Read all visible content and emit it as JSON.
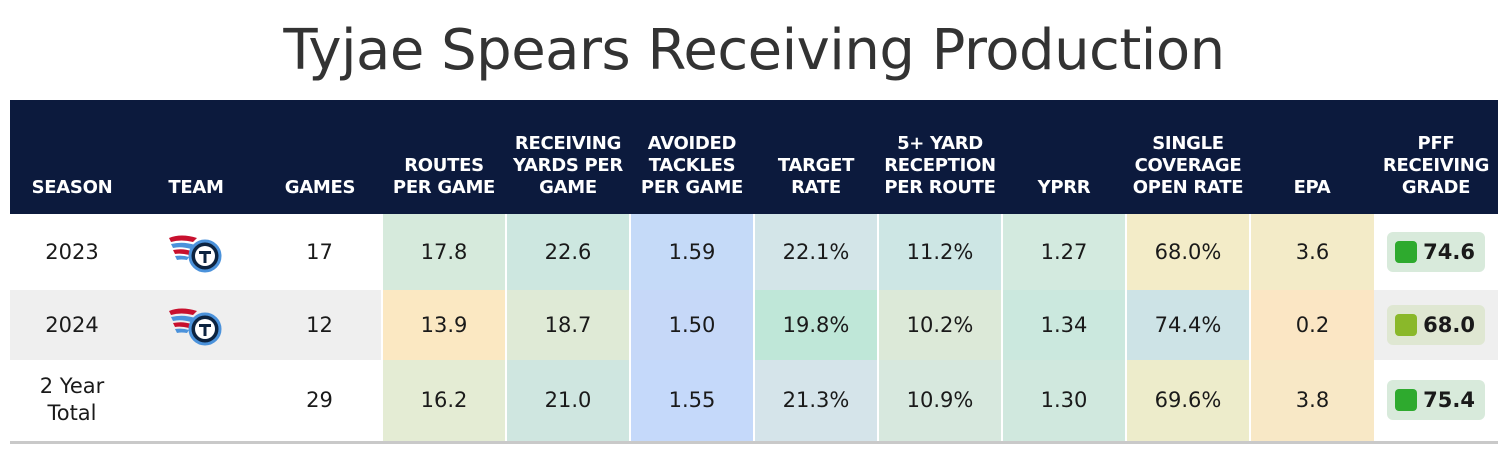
{
  "title": "Tyjae Spears Receiving Production",
  "columns": [
    "SEASON",
    "TEAM",
    "GAMES",
    "ROUTES PER GAME",
    "RECEIVING YARDS PER GAME",
    "AVOIDED TACKLES PER GAME",
    "TARGET RATE",
    "5+ YARD RECEPTION PER ROUTE",
    "YPRR",
    "SINGLE COVERAGE OPEN RATE",
    "EPA",
    "PFF RECEIVING GRADE"
  ],
  "rows": [
    {
      "season": "2023",
      "team_logo": "titans-logo-icon",
      "games": "17",
      "routes_per_game": "17.8",
      "rec_yards_per_game": "22.6",
      "avoided_tackles_per_game": "1.59",
      "target_rate": "22.1%",
      "five_plus_yard_rec_per_route": "11.2%",
      "yprr": "1.27",
      "single_coverage_open_rate": "68.0%",
      "epa": "3.6",
      "pff_grade": "74.6",
      "colors": {
        "routes_per_game": "#d6eadc",
        "rec_yards_per_game": "#cde7e0",
        "avoided_tackles_per_game": "#c5daf8",
        "target_rate": "#d3e5e8",
        "five_plus_yard_rec_per_route": "#cde6e4",
        "yprr": "#d3eadf",
        "single_coverage_open_rate": "#f3ecc8",
        "epa": "#f3ebc8",
        "grade_dot": "#2eaa2e",
        "grade_bg": "#d8eadb"
      }
    },
    {
      "season": "2024",
      "team_logo": "titans-logo-icon",
      "games": "12",
      "routes_per_game": "13.9",
      "rec_yards_per_game": "18.7",
      "avoided_tackles_per_game": "1.50",
      "target_rate": "19.8%",
      "five_plus_yard_rec_per_route": "10.2%",
      "yprr": "1.34",
      "single_coverage_open_rate": "74.4%",
      "epa": "0.2",
      "pff_grade": "68.0",
      "colors": {
        "routes_per_game": "#fbe8c2",
        "rec_yards_per_game": "#dfead6",
        "avoided_tackles_per_game": "#c6d8f8",
        "target_rate": "#bfe7d8",
        "five_plus_yard_rec_per_route": "#dce9d8",
        "yprr": "#cbe8de",
        "single_coverage_open_rate": "#cde3e6",
        "epa": "#fbe6c4",
        "grade_dot": "#8ab82a",
        "grade_bg": "#dfe7d2"
      }
    },
    {
      "season": "2 Year Total",
      "season_line1": "2 Year",
      "season_line2": "Total",
      "team_logo": "",
      "games": "29",
      "routes_per_game": "16.2",
      "rec_yards_per_game": "21.0",
      "avoided_tackles_per_game": "1.55",
      "target_rate": "21.3%",
      "five_plus_yard_rec_per_route": "10.9%",
      "yprr": "1.30",
      "single_coverage_open_rate": "69.6%",
      "epa": "3.8",
      "pff_grade": "75.4",
      "colors": {
        "routes_per_game": "#e4ecd4",
        "rec_yards_per_game": "#cfe6e0",
        "avoided_tackles_per_game": "#c5d9fa",
        "target_rate": "#d5e4ea",
        "five_plus_yard_rec_per_route": "#d7e8de",
        "yprr": "#d0e8de",
        "single_coverage_open_rate": "#edeccb",
        "epa": "#f8e8c6",
        "grade_dot": "#2eaa2e",
        "grade_bg": "#d8eadb"
      }
    }
  ],
  "colors": {
    "header_bg": "#0c1a3d",
    "header_text": "#ffffff",
    "shaded_row_bg": "#efefef"
  }
}
